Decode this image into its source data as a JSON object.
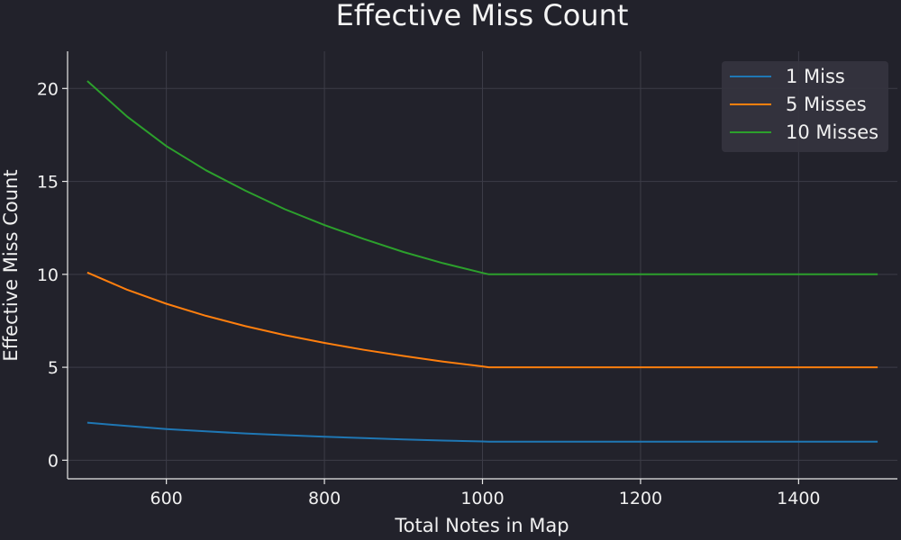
{
  "chart_data": {
    "type": "line",
    "title": "Effective Miss Count",
    "xlabel": "Total Notes in Map",
    "ylabel": "Effective Miss Count",
    "xlim": [
      475,
      1525
    ],
    "ylim": [
      -1,
      22
    ],
    "xticks": [
      600,
      800,
      1000,
      1200,
      1400
    ],
    "yticks": [
      0,
      5,
      10,
      15,
      20
    ],
    "grid": true,
    "legend_position": "top-right",
    "x": [
      500,
      550,
      600,
      650,
      700,
      750,
      800,
      850,
      900,
      950,
      1000,
      1008,
      1100,
      1200,
      1300,
      1400,
      1500
    ],
    "series": [
      {
        "name": "1 Miss",
        "color": "#1f77b4",
        "values": [
          2.02,
          1.84,
          1.68,
          1.55,
          1.44,
          1.35,
          1.26,
          1.19,
          1.12,
          1.06,
          1.01,
          1.0,
          1.0,
          1.0,
          1.0,
          1.0,
          1.0
        ]
      },
      {
        "name": "5 Misses",
        "color": "#ff7f0e",
        "values": [
          10.1,
          9.18,
          8.42,
          7.77,
          7.21,
          6.73,
          6.31,
          5.94,
          5.61,
          5.31,
          5.05,
          5.0,
          5.0,
          5.0,
          5.0,
          5.0,
          5.0
        ]
      },
      {
        "name": "10 Misses",
        "color": "#2ca02c",
        "values": [
          20.4,
          18.5,
          16.9,
          15.6,
          14.5,
          13.5,
          12.65,
          11.9,
          11.2,
          10.6,
          10.08,
          10.0,
          10.0,
          10.0,
          10.0,
          10.0,
          10.0
        ]
      }
    ]
  },
  "colors": {
    "background": "#22222b",
    "legend_background": "#35343e",
    "grid": "#3d3d48",
    "text": "#f0f0f0"
  }
}
